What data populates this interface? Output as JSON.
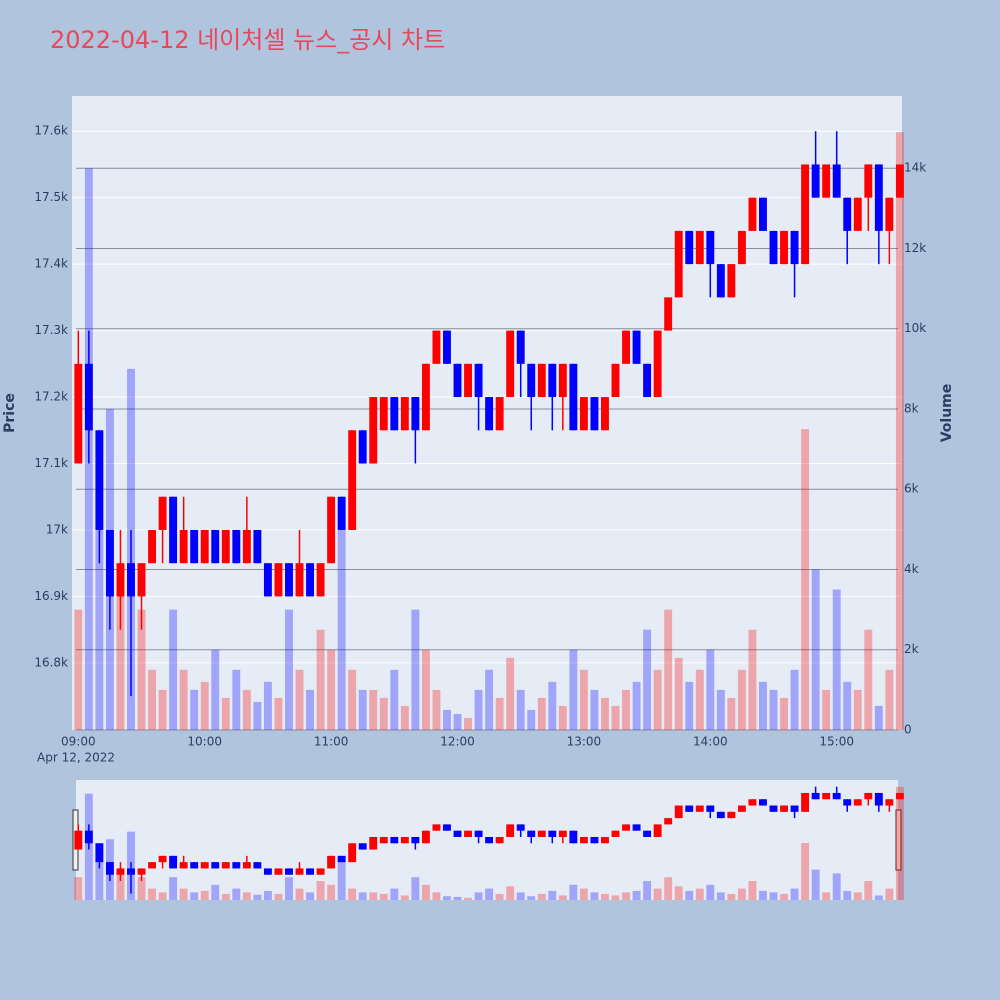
{
  "chart_data": {
    "type": "candlestick",
    "title": "2022-04-12 네이처셀 뉴스_공시 차트",
    "ylabel": "Price",
    "y2label": "Volume",
    "xaxis_date": "Apr 12, 2022",
    "increasing_color": "#ff0000",
    "decreasing_color": "#0000ff",
    "x": [
      "09:00",
      "09:05",
      "09:10",
      "09:15",
      "09:20",
      "09:25",
      "09:30",
      "09:35",
      "09:40",
      "09:45",
      "09:50",
      "09:55",
      "10:00",
      "10:05",
      "10:10",
      "10:15",
      "10:20",
      "10:25",
      "10:30",
      "10:35",
      "10:40",
      "10:45",
      "10:50",
      "10:55",
      "11:00",
      "11:05",
      "11:10",
      "11:15",
      "11:20",
      "11:25",
      "11:30",
      "11:35",
      "11:40",
      "11:45",
      "11:50",
      "11:55",
      "12:00",
      "12:05",
      "12:10",
      "12:15",
      "12:20",
      "12:25",
      "12:30",
      "12:35",
      "12:40",
      "12:45",
      "12:50",
      "12:55",
      "13:00",
      "13:05",
      "13:10",
      "13:15",
      "13:20",
      "13:25",
      "13:30",
      "13:35",
      "13:40",
      "13:45",
      "13:50",
      "13:55",
      "14:00",
      "14:05",
      "14:10",
      "14:15",
      "14:20",
      "14:25",
      "14:30",
      "14:35",
      "14:40",
      "14:45",
      "14:50",
      "14:55",
      "15:00",
      "15:05",
      "15:10",
      "15:15",
      "15:20",
      "15:25",
      "15:30"
    ],
    "open": [
      17100,
      17250,
      17150,
      17000,
      16900,
      16950,
      16900,
      16950,
      17000,
      17050,
      16950,
      17000,
      16950,
      17000,
      16950,
      17000,
      16950,
      17000,
      16950,
      16900,
      16950,
      16900,
      16950,
      16900,
      16950,
      17050,
      17000,
      17150,
      17100,
      17150,
      17200,
      17150,
      17200,
      17150,
      17250,
      17300,
      17250,
      17200,
      17250,
      17200,
      17150,
      17200,
      17300,
      17250,
      17200,
      17250,
      17200,
      17250,
      17150,
      17200,
      17150,
      17200,
      17250,
      17300,
      17250,
      17200,
      17300,
      17350,
      17450,
      17400,
      17450,
      17400,
      17350,
      17400,
      17450,
      17500,
      17450,
      17400,
      17450,
      17400,
      17550,
      17500,
      17550,
      17500,
      17450,
      17500,
      17550,
      17450,
      17500
    ],
    "high": [
      17300,
      17300,
      17150,
      17000,
      17000,
      17000,
      16950,
      17000,
      17050,
      17050,
      17050,
      17000,
      17000,
      17000,
      17000,
      17000,
      17050,
      17000,
      16950,
      16950,
      16950,
      17000,
      16950,
      16950,
      17050,
      17050,
      17150,
      17150,
      17200,
      17200,
      17200,
      17200,
      17200,
      17250,
      17300,
      17300,
      17250,
      17250,
      17250,
      17200,
      17200,
      17300,
      17300,
      17250,
      17250,
      17250,
      17250,
      17250,
      17200,
      17200,
      17200,
      17250,
      17300,
      17300,
      17250,
      17300,
      17350,
      17450,
      17450,
      17450,
      17450,
      17400,
      17400,
      17450,
      17500,
      17500,
      17450,
      17450,
      17450,
      17550,
      17600,
      17550,
      17600,
      17500,
      17500,
      17550,
      17550,
      17500,
      17550
    ],
    "low": [
      17100,
      17100,
      16950,
      16850,
      16850,
      16750,
      16850,
      16950,
      16950,
      16950,
      16950,
      16950,
      16950,
      16950,
      16950,
      16950,
      16950,
      16950,
      16900,
      16900,
      16900,
      16900,
      16900,
      16900,
      16950,
      17000,
      17000,
      17100,
      17100,
      17150,
      17150,
      17150,
      17100,
      17150,
      17250,
      17250,
      17200,
      17200,
      17150,
      17150,
      17150,
      17200,
      17200,
      17150,
      17200,
      17150,
      17150,
      17150,
      17150,
      17150,
      17150,
      17200,
      17250,
      17250,
      17200,
      17200,
      17300,
      17350,
      17400,
      17400,
      17350,
      17350,
      17350,
      17400,
      17450,
      17450,
      17400,
      17400,
      17350,
      17400,
      17500,
      17500,
      17500,
      17400,
      17450,
      17450,
      17400,
      17400,
      17500
    ],
    "close": [
      17250,
      17150,
      17000,
      16900,
      16950,
      16900,
      16950,
      17000,
      17050,
      16950,
      17000,
      16950,
      17000,
      16950,
      17000,
      16950,
      17000,
      16950,
      16900,
      16950,
      16900,
      16950,
      16900,
      16950,
      17050,
      17000,
      17150,
      17100,
      17200,
      17200,
      17150,
      17200,
      17150,
      17250,
      17300,
      17250,
      17200,
      17250,
      17200,
      17150,
      17200,
      17300,
      17250,
      17200,
      17250,
      17200,
      17250,
      17150,
      17200,
      17150,
      17200,
      17250,
      17300,
      17250,
      17200,
      17300,
      17350,
      17450,
      17400,
      17450,
      17400,
      17350,
      17400,
      17450,
      17500,
      17450,
      17400,
      17450,
      17400,
      17550,
      17500,
      17550,
      17500,
      17450,
      17500,
      17550,
      17450,
      17500,
      17550
    ],
    "volume": [
      3000,
      14000,
      5000,
      8000,
      4000,
      9000,
      3000,
      1500,
      1000,
      3000,
      1500,
      1000,
      1200,
      2000,
      800,
      1500,
      1000,
      700,
      1200,
      800,
      3000,
      1500,
      1000,
      2500,
      2000,
      5000,
      1500,
      1000,
      1000,
      800,
      1500,
      600,
      3000,
      2000,
      1000,
      500,
      400,
      300,
      1000,
      1500,
      800,
      1800,
      1000,
      500,
      800,
      1200,
      600,
      2000,
      1500,
      1000,
      800,
      600,
      1000,
      1200,
      2500,
      1500,
      3000,
      1800,
      1200,
      1500,
      2000,
      1000,
      800,
      1500,
      2500,
      1200,
      1000,
      800,
      1500,
      7500,
      4000,
      1000,
      3500,
      1200,
      1000,
      2500,
      600,
      1500,
      14900
    ],
    "xlim": [
      "08:57",
      "15:31"
    ],
    "xticks": [
      "09:00",
      "10:00",
      "11:00",
      "12:00",
      "13:00",
      "14:00",
      "15:00"
    ],
    "ylim": [
      16699,
      17653
    ],
    "yticks": [
      {
        "value": 16800,
        "label": "16.8k"
      },
      {
        "value": 16900,
        "label": "16.9k"
      },
      {
        "value": 17000,
        "label": "17k"
      },
      {
        "value": 17100,
        "label": "17.1k"
      },
      {
        "value": 17200,
        "label": "17.2k"
      },
      {
        "value": 17300,
        "label": "17.3k"
      },
      {
        "value": 17400,
        "label": "17.4k"
      },
      {
        "value": 17500,
        "label": "17.5k"
      },
      {
        "value": 17600,
        "label": "17.6k"
      }
    ],
    "y2lim": [
      0,
      15800
    ],
    "y2ticks": [
      0,
      {
        "value": 2000,
        "label": "2k"
      },
      {
        "value": 4000,
        "label": "4k"
      },
      {
        "value": 6000,
        "label": "6k"
      },
      {
        "value": 8000,
        "label": "8k"
      },
      {
        "value": 10000,
        "label": "10k"
      },
      {
        "value": 12000,
        "label": "12k"
      },
      {
        "value": 14000,
        "label": "14k"
      }
    ],
    "grid": true,
    "rangeslider": true
  }
}
